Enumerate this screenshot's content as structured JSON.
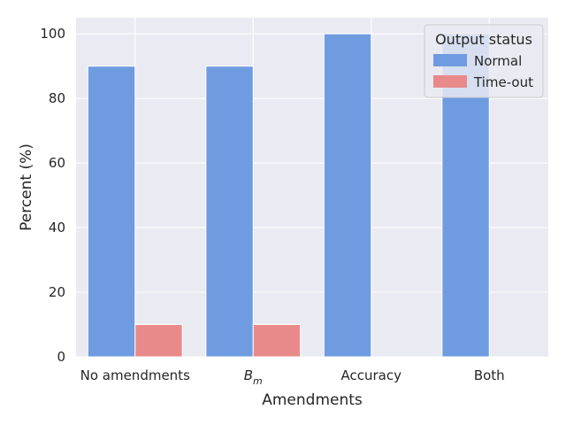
{
  "chart_data": {
    "type": "bar",
    "categories": [
      "No amendments",
      "B",
      "Accuracy",
      "Both"
    ],
    "category_subscripts": [
      "",
      "m",
      "",
      ""
    ],
    "series": [
      {
        "name": "Normal",
        "values": [
          90,
          90,
          100,
          100
        ],
        "color": "#6f9be0"
      },
      {
        "name": "Time-out",
        "values": [
          10,
          10,
          0,
          0
        ],
        "color": "#e88a8a"
      }
    ],
    "xlabel": "Amendments",
    "ylabel": "Percent (%)",
    "ylim": [
      0,
      105
    ],
    "yticks": [
      0,
      20,
      40,
      60,
      80,
      100
    ],
    "grid": true,
    "legend": {
      "title": "Output status",
      "placement": "top-right"
    },
    "background_color": "#eaeaf2",
    "grid_color": "#ffffff"
  }
}
